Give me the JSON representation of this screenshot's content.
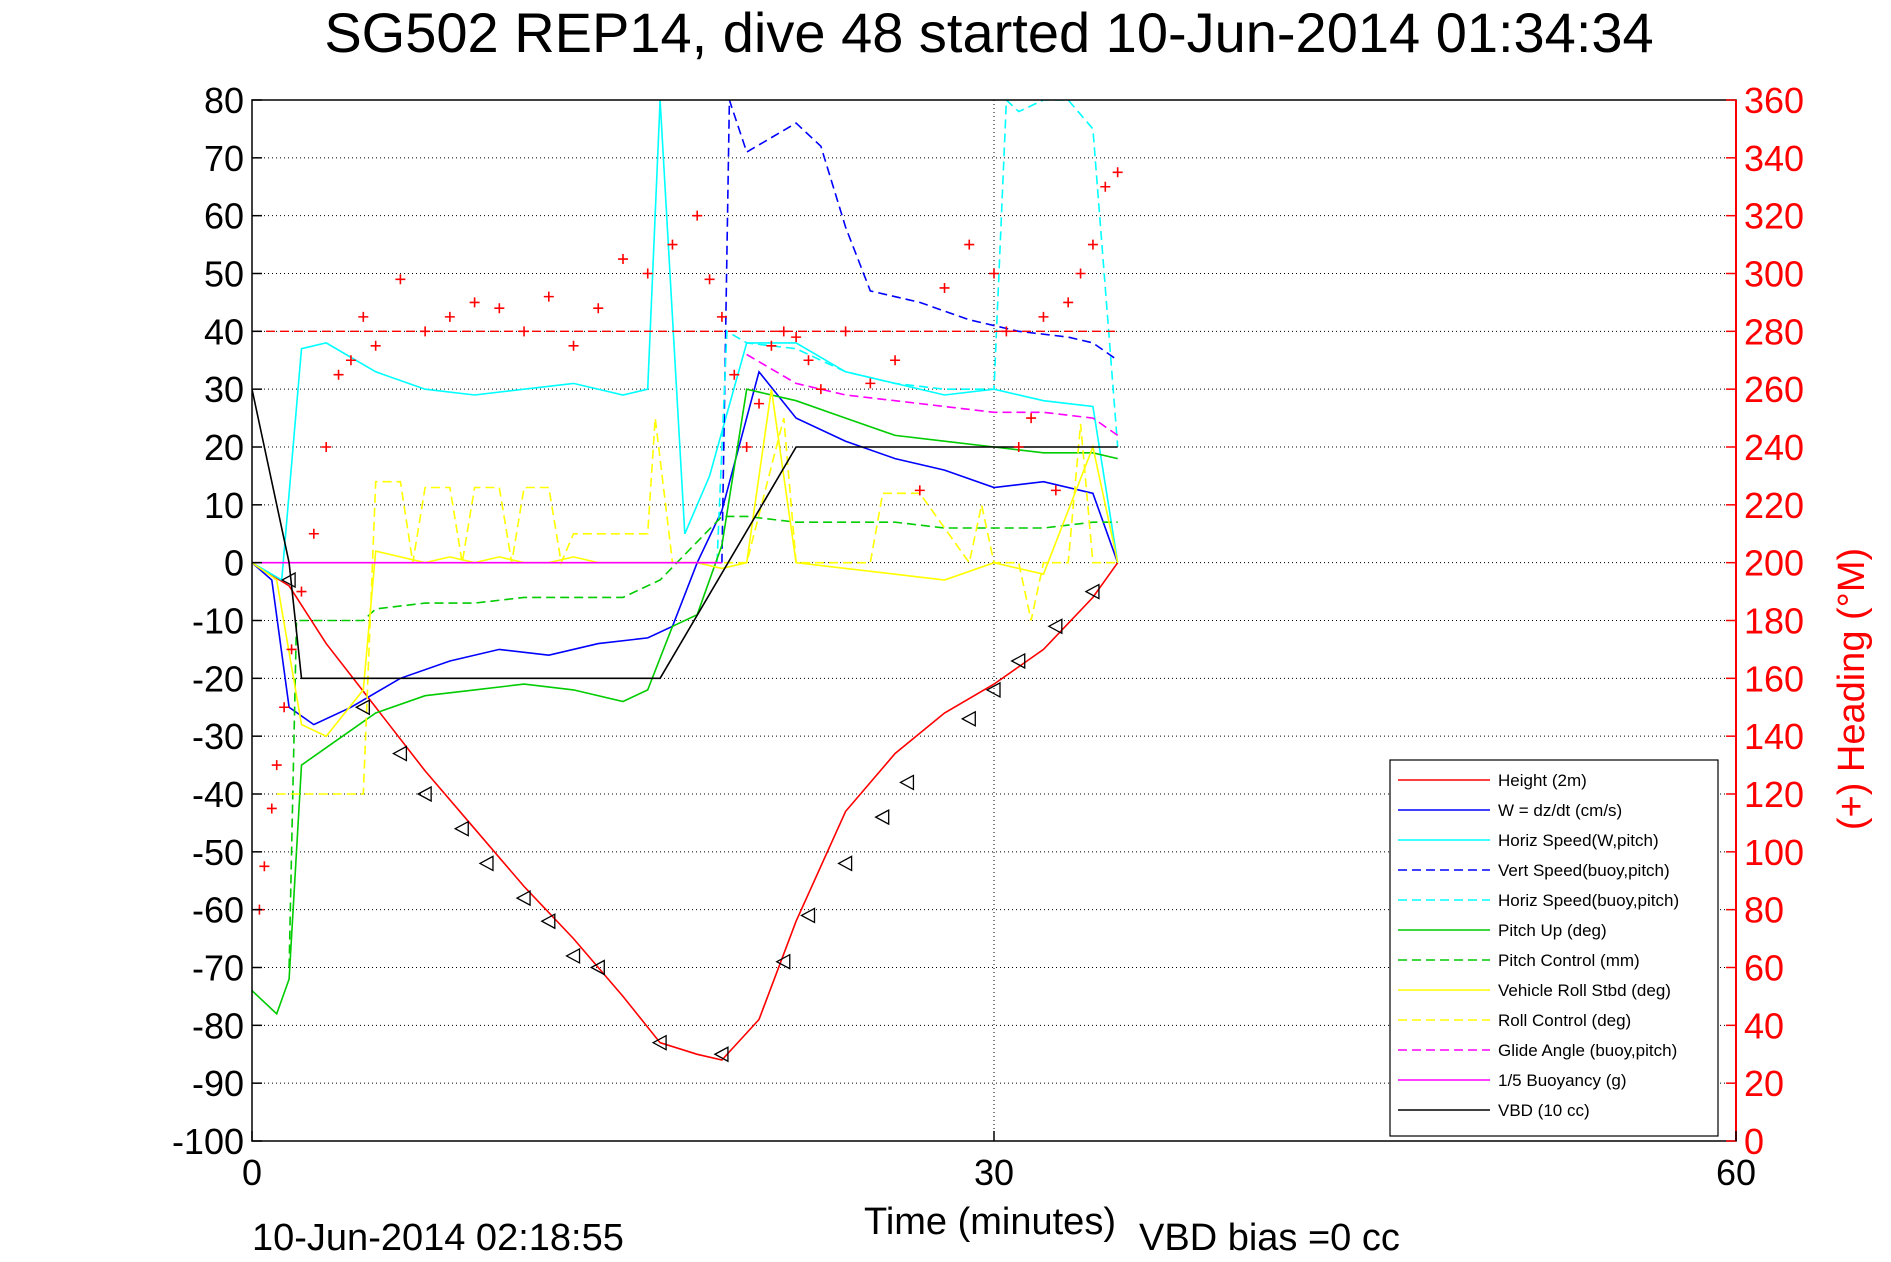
{
  "chart_data": {
    "type": "line",
    "title": "SG502 REP14, dive 48 started 10-Jun-2014 01:34:34",
    "xlabel": "Time (minutes)",
    "ylabel_right": "(+) Heading (°M)",
    "xlim": [
      0,
      60
    ],
    "ylim": [
      -100,
      80
    ],
    "ylim_right": [
      0,
      360
    ],
    "xticks": [
      "0",
      "30",
      "60"
    ],
    "yticks": [
      "80",
      "70",
      "60",
      "50",
      "40",
      "30",
      "20",
      "10",
      "0",
      "-10",
      "-20",
      "-30",
      "-40",
      "-50",
      "-60",
      "-70",
      "-80",
      "-90",
      "-100"
    ],
    "yticks_right": [
      "360",
      "340",
      "320",
      "300",
      "280",
      "260",
      "240",
      "220",
      "200",
      "180",
      "160",
      "140",
      "120",
      "100",
      "80",
      "60",
      "40",
      "20",
      "0"
    ],
    "grid": true,
    "legend_position": "bottom-right",
    "footer_left": "10-Jun-2014 02:18:55",
    "footer_right": "VBD bias =0 cc",
    "series": [
      {
        "name": "Height (2m)",
        "color": "#ff0000",
        "style": "solid",
        "x": [
          0,
          1.5,
          3,
          5,
          7,
          9,
          11,
          13,
          15,
          16.5,
          18,
          19,
          20.5,
          22,
          24,
          26,
          28,
          30,
          32,
          34,
          35
        ],
        "y": [
          0,
          -4,
          -14,
          -25,
          -36,
          -46,
          -56,
          -65,
          -75,
          -83,
          -85,
          -86,
          -79,
          -62,
          -43,
          -33,
          -26,
          -21,
          -15,
          -6,
          0
        ]
      },
      {
        "name": "W = dz/dt (cm/s)",
        "color": "#0000ff",
        "style": "solid",
        "x": [
          0,
          0.8,
          1.5,
          2.5,
          4,
          6,
          8,
          10,
          12,
          14,
          16,
          17,
          18,
          19,
          20.5,
          22,
          24,
          26,
          28,
          30,
          32,
          34,
          35
        ],
        "y": [
          0,
          -3,
          -25,
          -28,
          -25,
          -20,
          -17,
          -15,
          -16,
          -14,
          -13,
          -11,
          0,
          9,
          33,
          25,
          21,
          18,
          16,
          13,
          14,
          12,
          0
        ]
      },
      {
        "name": "Horiz Speed(W,pitch)",
        "color": "#00ffff",
        "style": "solid",
        "x": [
          0,
          1.2,
          2,
          3,
          5,
          7,
          9,
          11,
          13,
          15,
          16,
          16.5,
          17.5,
          18.5,
          20,
          22,
          24,
          26,
          28,
          30,
          32,
          34,
          35
        ],
        "y": [
          0,
          -3,
          37,
          38,
          33,
          30,
          29,
          30,
          31,
          29,
          30,
          80,
          5,
          15,
          38,
          38,
          33,
          31,
          29,
          30,
          28,
          27,
          0
        ]
      },
      {
        "name": "Vert Speed(buoy,pitch)",
        "color": "#0000ff",
        "style": "dashed",
        "x": [
          19,
          19.3,
          20,
          22,
          23,
          24,
          25,
          27,
          29,
          31,
          33,
          34,
          35
        ],
        "y": [
          0,
          80,
          71,
          76,
          72,
          58,
          47,
          45,
          42,
          40,
          39,
          38,
          35
        ]
      },
      {
        "name": "Horiz Speed(buoy,pitch)",
        "color": "#00ffff",
        "style": "dashed",
        "x": [
          18.8,
          19.2,
          20,
          22,
          24,
          26,
          28,
          30,
          30.5,
          31,
          32,
          33,
          34,
          35
        ],
        "y": [
          0,
          40,
          38,
          37,
          33,
          31,
          30,
          30,
          80,
          78,
          80,
          80,
          75,
          20
        ]
      },
      {
        "name": "Pitch Up (deg)",
        "color": "#00cc00",
        "style": "solid",
        "x": [
          0,
          1,
          1.5,
          2,
          3,
          5,
          7,
          9,
          11,
          13,
          15,
          16,
          17,
          18,
          19,
          20,
          22,
          24,
          26,
          28,
          30,
          32,
          34,
          35
        ],
        "y": [
          -74,
          -78,
          -72,
          -35,
          -32,
          -26,
          -23,
          -22,
          -21,
          -22,
          -24,
          -22,
          -11,
          -9,
          3,
          30,
          28,
          25,
          22,
          21,
          20,
          19,
          19,
          18
        ]
      },
      {
        "name": "Pitch Control (mm)",
        "color": "#00cc00",
        "style": "dashed",
        "x": [
          1.5,
          1.8,
          2.5,
          4.5,
          5,
          7,
          9,
          11,
          13,
          15,
          16.5,
          19,
          20,
          22,
          24,
          26,
          28,
          30,
          32,
          34,
          35
        ],
        "y": [
          -70,
          -10,
          -10,
          -10,
          -8,
          -7,
          -7,
          -6,
          -6,
          -6,
          -3,
          8,
          8,
          7,
          7,
          7,
          6,
          6,
          6,
          7,
          7
        ]
      },
      {
        "name": "Vehicle Roll Stbd (deg)",
        "color": "#ffff00",
        "style": "solid",
        "x": [
          0,
          1,
          2,
          3,
          4.5,
          5,
          6,
          7,
          8,
          9,
          10,
          11,
          12,
          13,
          14,
          15,
          16,
          17,
          18,
          19,
          20,
          21,
          22,
          24,
          26,
          28,
          30,
          32,
          34,
          35
        ],
        "y": [
          0,
          -3,
          -28,
          -30,
          -22,
          2,
          1,
          0,
          1,
          0,
          1,
          0,
          0,
          1,
          0,
          0,
          0,
          0,
          0,
          -1,
          0,
          30,
          0,
          -1,
          -2,
          -3,
          0,
          -2,
          20,
          0
        ]
      },
      {
        "name": "Roll Control (deg)",
        "color": "#ffff00",
        "style": "dashed",
        "x": [
          1,
          2,
          3,
          4.5,
          5,
          6,
          6.5,
          7,
          8,
          8.5,
          9,
          10,
          10.5,
          11,
          12,
          12.5,
          13,
          14,
          16,
          16.3,
          17,
          20,
          21.5,
          22,
          25,
          25.5,
          27,
          29,
          29.5,
          30,
          31,
          31.5,
          32,
          33,
          33.5,
          34,
          35
        ],
        "y": [
          -40,
          -40,
          -40,
          -40,
          14,
          14,
          0,
          13,
          13,
          0,
          13,
          13,
          0,
          13,
          13,
          0,
          5,
          5,
          5,
          25,
          0,
          0,
          25,
          0,
          0,
          12,
          12,
          0,
          10,
          0,
          0,
          -10,
          0,
          0,
          24,
          0,
          0
        ]
      },
      {
        "name": "Glide Angle (buoy,pitch)",
        "color": "#ff00ff",
        "style": "dashed",
        "x": [
          20,
          22,
          24,
          26,
          28,
          30,
          32,
          34,
          35
        ],
        "y": [
          36,
          31,
          29,
          28,
          27,
          26,
          26,
          25,
          22
        ]
      },
      {
        "name": "1/5 Buoyancy (g)",
        "color": "#ff00ff",
        "style": "solid",
        "x": [
          0,
          19
        ],
        "y": [
          0,
          0
        ]
      },
      {
        "name": "VBD (10 cc)",
        "color": "#000000",
        "style": "solid",
        "x": [
          0,
          1.5,
          2,
          16,
          16.5,
          22,
          35
        ],
        "y": [
          30,
          0,
          -20,
          -20,
          -20,
          20,
          20
        ]
      }
    ],
    "heading": {
      "color": "#ff0000",
      "marker": "+",
      "mean_heading": 280,
      "x": [
        0.3,
        0.5,
        0.8,
        1.0,
        1.3,
        1.6,
        2.0,
        2.5,
        3.0,
        3.5,
        4.0,
        4.5,
        5.0,
        6.0,
        7.0,
        8.0,
        9.0,
        10.0,
        11.0,
        12.0,
        13.0,
        14.0,
        15.0,
        16.0,
        17.0,
        18.0,
        18.5,
        19.0,
        19.5,
        20.0,
        20.5,
        21.0,
        21.5,
        22.0,
        22.5,
        23.0,
        24.0,
        25.0,
        26.0,
        27.0,
        28.0,
        29.0,
        30.0,
        30.5,
        31.0,
        31.5,
        32.0,
        32.5,
        33.0,
        33.5,
        34.0,
        34.5,
        35.0
      ],
      "y": [
        80,
        95,
        115,
        130,
        150,
        170,
        190,
        210,
        240,
        265,
        270,
        285,
        275,
        298,
        280,
        285,
        290,
        288,
        280,
        292,
        275,
        288,
        305,
        300,
        310,
        320,
        298,
        285,
        265,
        240,
        255,
        275,
        280,
        278,
        270,
        260,
        280,
        262,
        270,
        225,
        295,
        310,
        300,
        280,
        240,
        250,
        285,
        225,
        290,
        300,
        310,
        330,
        335
      ]
    },
    "markers": {
      "color": "#000000",
      "shape": "triangle",
      "x": [
        1.5,
        4.5,
        6,
        7,
        8.5,
        9.5,
        11,
        12,
        13,
        14,
        16.5,
        19,
        21.5,
        22.5,
        24,
        25.5,
        26.5,
        29,
        30,
        31,
        32.5,
        34
      ],
      "y": [
        -3,
        -25,
        -33,
        -40,
        -46,
        -52,
        -58,
        -62,
        -68,
        -70,
        -83,
        -85,
        -69,
        -61,
        -52,
        -44,
        -38,
        -27,
        -22,
        -17,
        -11,
        -5
      ]
    }
  }
}
